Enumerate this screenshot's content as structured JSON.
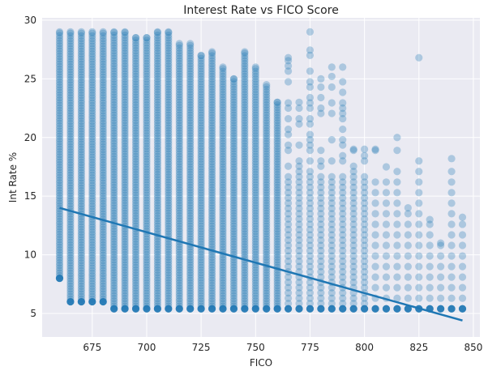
{
  "chart_data": {
    "type": "scatter",
    "title": "Interest Rate vs FICO Score",
    "xlabel": "FICO",
    "ylabel": "Int Rate %",
    "xlim": [
      652,
      853
    ],
    "ylim": [
      3.0,
      30.2
    ],
    "x_ticks": [
      675,
      700,
      725,
      750,
      775,
      800,
      825,
      850
    ],
    "y_ticks": [
      5,
      10,
      15,
      20,
      25,
      30
    ],
    "grid": true,
    "point_color": "#1f77b4",
    "point_alpha": 0.3,
    "background_color": "#eaeaf2",
    "series": [
      {
        "fico_bins": [
          660,
          665,
          670,
          675,
          680,
          685,
          690,
          695,
          700,
          705,
          710,
          715,
          720,
          725,
          730,
          735,
          740,
          745,
          750,
          755,
          760,
          765,
          770,
          775,
          780,
          785,
          790,
          795,
          800,
          805,
          810,
          815,
          820,
          825,
          830,
          835,
          840,
          845
        ],
        "rate_min": [
          8.0,
          6.0,
          6.0,
          6.0,
          6.0,
          5.4,
          5.4,
          5.4,
          5.4,
          5.4,
          5.4,
          5.4,
          5.4,
          5.4,
          5.4,
          5.4,
          5.4,
          5.4,
          5.4,
          5.4,
          5.4,
          5.4,
          5.4,
          5.4,
          5.4,
          5.4,
          5.4,
          5.4,
          5.4,
          5.4,
          5.4,
          5.4,
          5.4,
          5.4,
          5.4,
          5.4,
          5.4,
          5.4
        ],
        "rate_max": [
          29.0,
          29.0,
          29.0,
          29.0,
          29.0,
          29.0,
          29.0,
          28.5,
          28.5,
          29.0,
          29.0,
          28.0,
          28.0,
          27.0,
          27.3,
          26.0,
          25.0,
          27.3,
          26.0,
          24.5,
          23.0,
          26.8,
          23.0,
          29.0,
          25.0,
          26.0,
          26.0,
          19.0,
          19.0,
          19.0,
          17.5,
          20.0,
          14.0,
          26.8,
          13.0,
          11.0,
          18.2,
          13.2
        ],
        "fit_line": [
          [
            660,
            14.0
          ],
          [
            845,
            4.4
          ]
        ]
      }
    ]
  }
}
